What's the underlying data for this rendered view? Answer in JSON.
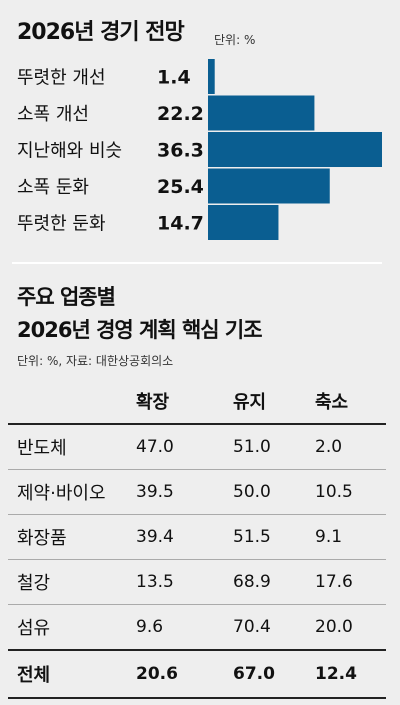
{
  "section1": {
    "title": "2026년 경기 전망",
    "unit": "단위: %"
  },
  "section2": {
    "title_line1": "주요 업종별",
    "title_line2": "2026년 경영 계획 핵심 기조",
    "source": "단위: %, 자료: 대한상공회의소"
  },
  "colors": {
    "bar": "#0a5e91",
    "background": "#eeeeee"
  },
  "chart_data": [
    {
      "type": "bar",
      "orientation": "horizontal",
      "title": "2026년 경기 전망",
      "unit": "단위: %",
      "categories": [
        "뚜렷한 개선",
        "소폭 개선",
        "지난해와 비슷",
        "소폭 둔화",
        "뚜렷한 둔화"
      ],
      "values": [
        1.4,
        22.2,
        36.3,
        25.4,
        14.7
      ],
      "value_labels": [
        "1.4",
        "22.2",
        "36.3",
        "25.4",
        "14.7"
      ],
      "xlim": [
        0,
        36.3
      ]
    },
    {
      "type": "table",
      "title": "주요 업종별 2026년 경영 계획 핵심 기조",
      "unit": "단위: %, 자료: 대한상공회의소",
      "columns": [
        "",
        "확장",
        "유지",
        "축소"
      ],
      "rows": [
        {
          "label": "반도체",
          "values": [
            "47.0",
            "51.0",
            "2.0"
          ]
        },
        {
          "label": "제약·바이오",
          "values": [
            "39.5",
            "50.0",
            "10.5"
          ]
        },
        {
          "label": "화장품",
          "values": [
            "39.4",
            "51.5",
            "9.1"
          ]
        },
        {
          "label": "철강",
          "values": [
            "13.5",
            "68.9",
            "17.6"
          ]
        },
        {
          "label": "섬유",
          "values": [
            "9.6",
            "70.4",
            "20.0"
          ]
        }
      ],
      "total": {
        "label": "전체",
        "values": [
          "20.6",
          "67.0",
          "12.4"
        ]
      }
    }
  ]
}
